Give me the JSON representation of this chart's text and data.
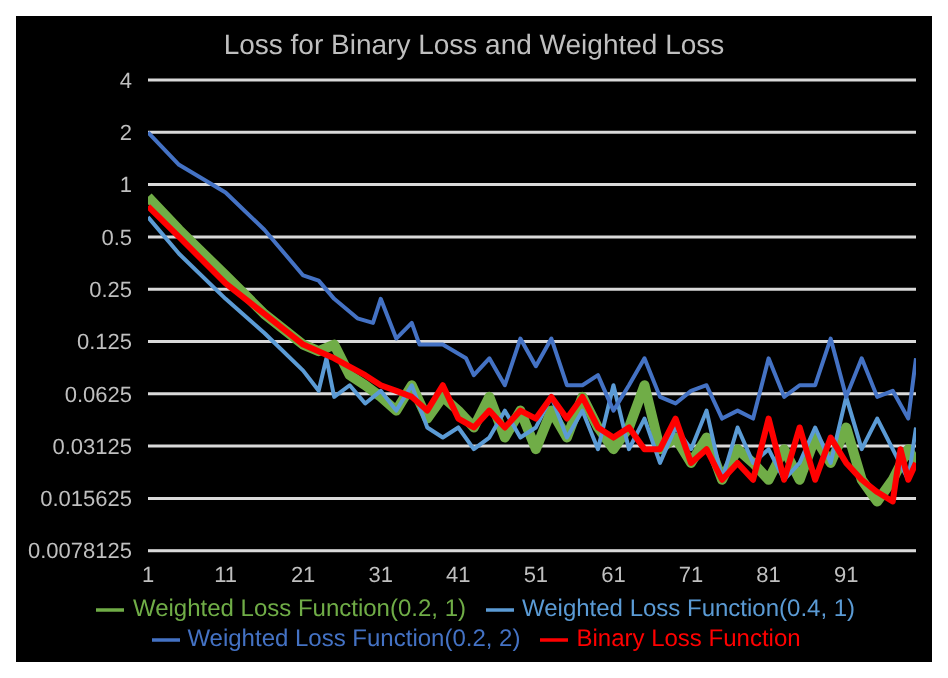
{
  "chart_data": {
    "type": "line",
    "title": "Loss for Binary Loss and Weighted Loss",
    "log": "y",
    "grid": "y",
    "legend": "bottom",
    "marker": "none",
    "line_style": "solid",
    "xlim": [
      1,
      100
    ],
    "xticks": [
      1,
      11,
      21,
      31,
      41,
      51,
      61,
      71,
      81,
      91
    ],
    "ylim": [
      0.0078125,
      4
    ],
    "yticks": [
      0.0078125,
      0.015625,
      0.03125,
      0.0625,
      0.125,
      0.25,
      0.5,
      1,
      2,
      4
    ],
    "series": [
      {
        "name": "Weighted Loss Function(0.2, 1)",
        "color": "#70ad47",
        "x": [
          1,
          5,
          11,
          16,
          21,
          23,
          25,
          27,
          29,
          31,
          33,
          35,
          37,
          39,
          41,
          43,
          45,
          47,
          49,
          51,
          53,
          55,
          57,
          59,
          61,
          63,
          65,
          67,
          69,
          71,
          73,
          75,
          77,
          79,
          81,
          83,
          85,
          87,
          89,
          91,
          93,
          95,
          97,
          99,
          100
        ],
        "values": [
          0.85,
          0.55,
          0.3,
          0.18,
          0.12,
          0.11,
          0.12,
          0.08,
          0.07,
          0.06,
          0.05,
          0.07,
          0.045,
          0.06,
          0.05,
          0.04,
          0.06,
          0.035,
          0.05,
          0.03,
          0.05,
          0.035,
          0.06,
          0.04,
          0.03,
          0.04,
          0.07,
          0.03,
          0.035,
          0.025,
          0.035,
          0.02,
          0.03,
          0.025,
          0.02,
          0.03,
          0.02,
          0.035,
          0.025,
          0.04,
          0.02,
          0.015,
          0.02,
          0.03,
          0.025
        ]
      },
      {
        "name": "Weighted Loss Function(0.4, 1)",
        "color": "#5b9bd5",
        "x": [
          1,
          5,
          11,
          16,
          21,
          23,
          24,
          25,
          27,
          29,
          31,
          33,
          35,
          37,
          39,
          41,
          43,
          45,
          47,
          49,
          51,
          53,
          55,
          57,
          59,
          61,
          63,
          65,
          67,
          69,
          71,
          73,
          75,
          77,
          79,
          81,
          83,
          85,
          87,
          89,
          91,
          93,
          95,
          97,
          99,
          100
        ],
        "values": [
          0.65,
          0.4,
          0.22,
          0.14,
          0.085,
          0.065,
          0.1,
          0.06,
          0.07,
          0.055,
          0.065,
          0.05,
          0.07,
          0.04,
          0.035,
          0.04,
          0.03,
          0.035,
          0.05,
          0.035,
          0.04,
          0.06,
          0.035,
          0.05,
          0.03,
          0.07,
          0.03,
          0.045,
          0.025,
          0.04,
          0.03,
          0.05,
          0.02,
          0.04,
          0.025,
          0.03,
          0.02,
          0.025,
          0.04,
          0.025,
          0.06,
          0.03,
          0.045,
          0.03,
          0.02,
          0.04
        ]
      },
      {
        "name": "Weighted Loss Function(0.2, 2)",
        "color": "#4472c4",
        "x": [
          1,
          5,
          11,
          16,
          21,
          23,
          25,
          28,
          30,
          31,
          33,
          35,
          36,
          39,
          42,
          43,
          45,
          47,
          49,
          51,
          53,
          55,
          57,
          59,
          61,
          63,
          65,
          67,
          69,
          71,
          73,
          75,
          77,
          79,
          81,
          83,
          85,
          87,
          89,
          91,
          93,
          95,
          97,
          99,
          100
        ],
        "values": [
          2,
          1.3,
          0.9,
          0.55,
          0.3,
          0.28,
          0.22,
          0.17,
          0.16,
          0.22,
          0.13,
          0.16,
          0.12,
          0.12,
          0.1,
          0.08,
          0.1,
          0.07,
          0.13,
          0.09,
          0.13,
          0.07,
          0.07,
          0.08,
          0.05,
          0.07,
          0.1,
          0.06,
          0.055,
          0.065,
          0.07,
          0.045,
          0.05,
          0.045,
          0.1,
          0.06,
          0.07,
          0.07,
          0.13,
          0.06,
          0.1,
          0.06,
          0.065,
          0.045,
          0.1
        ]
      },
      {
        "name": "Binary Loss Function",
        "color": "#ff0000",
        "x": [
          1,
          5,
          11,
          16,
          21,
          25,
          29,
          31,
          33,
          35,
          37,
          39,
          41,
          43,
          45,
          47,
          49,
          51,
          53,
          55,
          57,
          59,
          61,
          63,
          65,
          67,
          69,
          71,
          73,
          75,
          77,
          79,
          81,
          83,
          85,
          87,
          89,
          91,
          93,
          95,
          97,
          98,
          99,
          100
        ],
        "values": [
          0.75,
          0.5,
          0.27,
          0.18,
          0.12,
          0.1,
          0.08,
          0.07,
          0.065,
          0.06,
          0.05,
          0.07,
          0.045,
          0.04,
          0.05,
          0.04,
          0.05,
          0.045,
          0.06,
          0.045,
          0.06,
          0.04,
          0.035,
          0.04,
          0.03,
          0.03,
          0.045,
          0.025,
          0.03,
          0.02,
          0.025,
          0.02,
          0.045,
          0.02,
          0.04,
          0.02,
          0.035,
          0.025,
          0.02,
          0.017,
          0.015,
          0.03,
          0.02,
          0.025
        ]
      }
    ]
  }
}
